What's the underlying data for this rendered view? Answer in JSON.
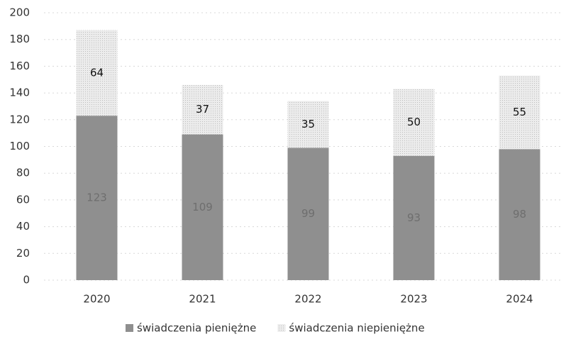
{
  "chart_data": {
    "type": "stacked_bar",
    "categories": [
      "2020",
      "2021",
      "2022",
      "2023",
      "2024"
    ],
    "series": [
      {
        "name": "świadczenia pieniężne",
        "color": "#8f8f8f",
        "values": [
          123,
          109,
          99,
          93,
          98
        ]
      },
      {
        "name": "świadczenia niepieniężne",
        "color": "#e4e4e4",
        "values": [
          64,
          37,
          35,
          50,
          55
        ]
      }
    ],
    "ylim": [
      0,
      200
    ],
    "yticks": [
      0,
      20,
      40,
      60,
      80,
      100,
      120,
      140,
      160,
      180,
      200
    ],
    "grid": true,
    "legend": "bottom"
  }
}
